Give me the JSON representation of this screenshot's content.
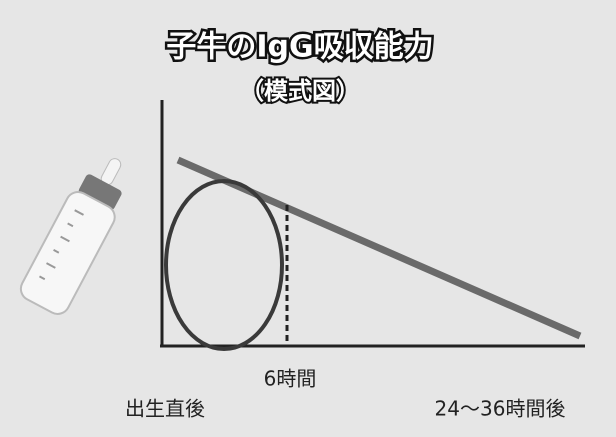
{
  "title": "子牛のIgG吸収能力",
  "subtitle": "（模式図）",
  "labels": {
    "six_hours": "6時間",
    "birth": "出生直後",
    "late": "24～36時間後"
  }
}
